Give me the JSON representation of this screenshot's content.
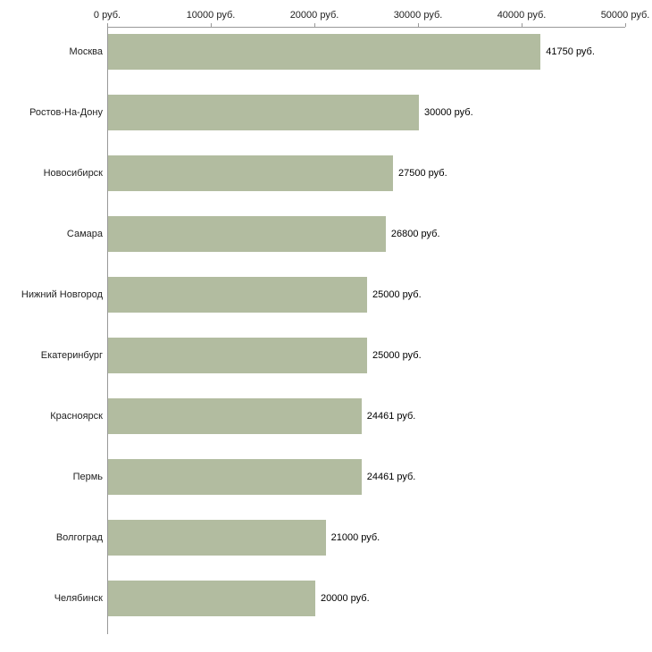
{
  "chart_data": {
    "type": "bar",
    "orientation": "horizontal",
    "title": "",
    "xlabel": "",
    "ylabel": "",
    "xlim": [
      0,
      50000
    ],
    "grid": false,
    "legend": "none",
    "bar_color": "#b2bca0",
    "axis_color": "#999999",
    "x_ticks": [
      {
        "value": 0,
        "label": "0 руб."
      },
      {
        "value": 10000,
        "label": "10000 руб."
      },
      {
        "value": 20000,
        "label": "20000 руб."
      },
      {
        "value": 30000,
        "label": "30000 руб."
      },
      {
        "value": 40000,
        "label": "40000 руб."
      },
      {
        "value": 50000,
        "label": "50000 руб."
      }
    ],
    "categories": [
      "Москва",
      "Ростов-На-Дону",
      "Новосибирск",
      "Самара",
      "Нижний Новгород",
      "Екатеринбург",
      "Красноярск",
      "Пермь",
      "Волгоград",
      "Челябинск"
    ],
    "values": [
      41750,
      30000,
      27500,
      26800,
      25000,
      25000,
      24461,
      24461,
      21000,
      20000
    ],
    "points": [
      {
        "city": "Москва",
        "value": 41750,
        "label": "41750 руб."
      },
      {
        "city": "Ростов-На-Дону",
        "value": 30000,
        "label": "30000 руб."
      },
      {
        "city": "Новосибирск",
        "value": 27500,
        "label": "27500 руб."
      },
      {
        "city": "Самара",
        "value": 26800,
        "label": "26800 руб."
      },
      {
        "city": "Нижний Новгород",
        "value": 25000,
        "label": "25000 руб."
      },
      {
        "city": "Екатеринбург",
        "value": 25000,
        "label": "25000 руб."
      },
      {
        "city": "Красноярск",
        "value": 24461,
        "label": "24461 руб."
      },
      {
        "city": "Пермь",
        "value": 24461,
        "label": "24461 руб."
      },
      {
        "city": "Волгоград",
        "value": 21000,
        "label": "21000 руб."
      },
      {
        "city": "Челябинск",
        "value": 20000,
        "label": "20000 руб."
      }
    ]
  }
}
